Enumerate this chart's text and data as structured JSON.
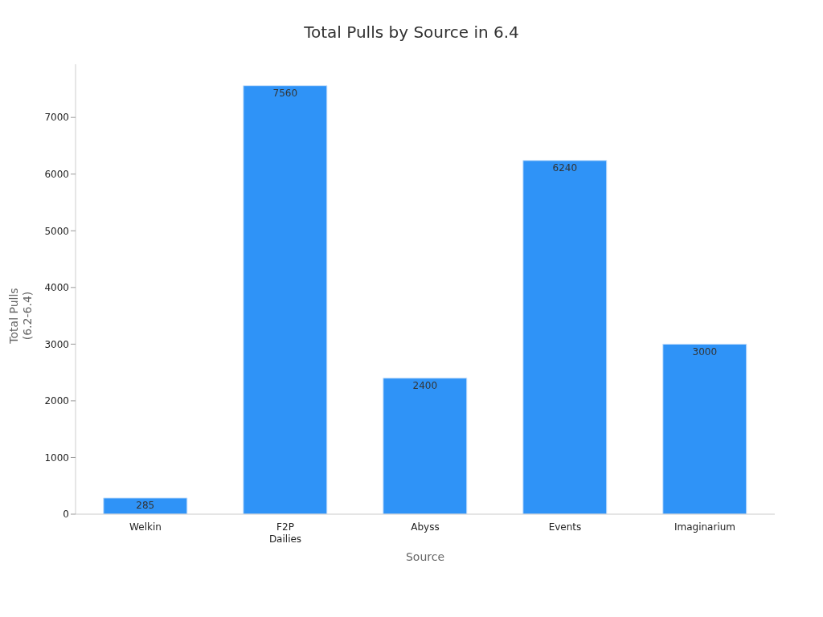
{
  "chart_data": {
    "type": "bar",
    "title": "Total Pulls by Source in 6.4",
    "xlabel": "Source",
    "ylabel": "Total Pulls (6.2-6.4)",
    "categories": [
      "Welkin",
      "F2P Dailies",
      "Abyss",
      "Events",
      "Imaginarium"
    ],
    "values": [
      285,
      7560,
      2400,
      6240,
      3000
    ],
    "color": "#2f93f7",
    "ylim": [
      0,
      7938
    ],
    "yticks": [
      0,
      1000,
      2000,
      3000,
      4000,
      5000,
      6000,
      7000
    ],
    "data_labels": true,
    "grid": false
  }
}
